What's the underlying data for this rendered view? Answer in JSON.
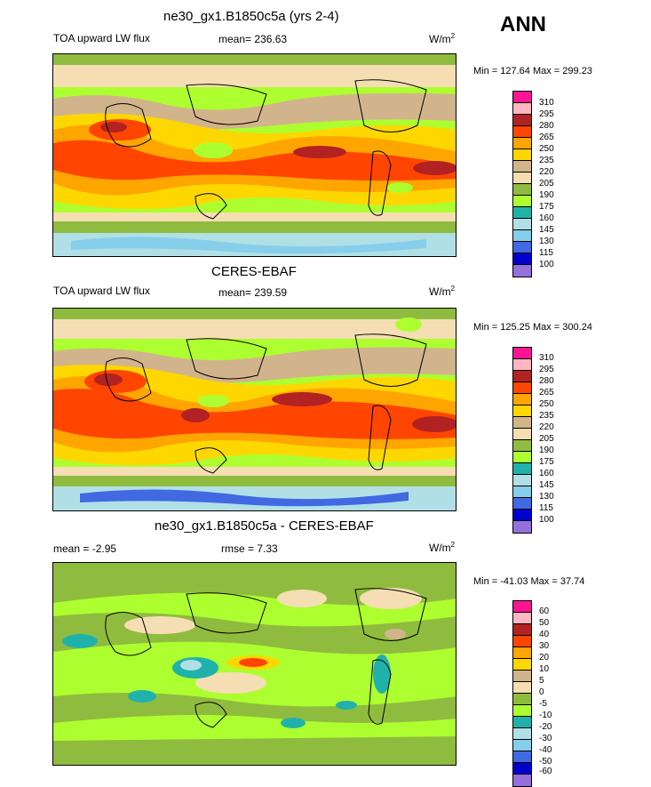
{
  "season": "ANN",
  "units": "W/m",
  "units_sup": "2",
  "panels": [
    {
      "title": "ne30_gx1.B1850c5a (yrs 2-4)",
      "left_label": "TOA upward LW flux",
      "center_label": "mean= 236.63",
      "minmax": "Min = 127.64 Max = 299.23",
      "levels": [
        "310",
        "295",
        "280",
        "265",
        "250",
        "235",
        "220",
        "205",
        "190",
        "175",
        "160",
        "145",
        "130",
        "115",
        "100"
      ],
      "colors": [
        "#ff1493",
        "#ffb6c1",
        "#b22222",
        "#ff4500",
        "#ffa500",
        "#ffd700",
        "#d2b48c",
        "#f5deb3",
        "#8fbc3f",
        "#adff2f",
        "#20b2aa",
        "#b0e0e6",
        "#87ceeb",
        "#4169e1",
        "#0000cd",
        "#9370db"
      ]
    },
    {
      "title": "CERES-EBAF",
      "left_label": "TOA upward LW flux",
      "center_label": "mean= 239.59",
      "minmax": "Min = 125.25 Max = 300.24",
      "levels": [
        "310",
        "295",
        "280",
        "265",
        "250",
        "235",
        "220",
        "205",
        "190",
        "175",
        "160",
        "145",
        "130",
        "115",
        "100"
      ],
      "colors": [
        "#ff1493",
        "#ffb6c1",
        "#b22222",
        "#ff4500",
        "#ffa500",
        "#ffd700",
        "#d2b48c",
        "#f5deb3",
        "#8fbc3f",
        "#adff2f",
        "#20b2aa",
        "#b0e0e6",
        "#87ceeb",
        "#4169e1",
        "#0000cd",
        "#9370db"
      ]
    },
    {
      "title": "ne30_gx1.B1850c5a - CERES-EBAF",
      "left_label": "mean =  -2.95",
      "center_label": "rmse =   7.33",
      "minmax": "Min = -41.03 Max =  37.74",
      "levels": [
        "60",
        "50",
        "40",
        "30",
        "20",
        "10",
        "5",
        "0",
        "-5",
        "-10",
        "-20",
        "-30",
        "-40",
        "-50",
        "-60"
      ],
      "colors": [
        "#ff1493",
        "#ffb6c1",
        "#b22222",
        "#ff4500",
        "#ffa500",
        "#ffd700",
        "#d2b48c",
        "#f5deb3",
        "#8fbc3f",
        "#adff2f",
        "#20b2aa",
        "#b0e0e6",
        "#87ceeb",
        "#4169e1",
        "#0000cd",
        "#9370db"
      ]
    }
  ]
}
